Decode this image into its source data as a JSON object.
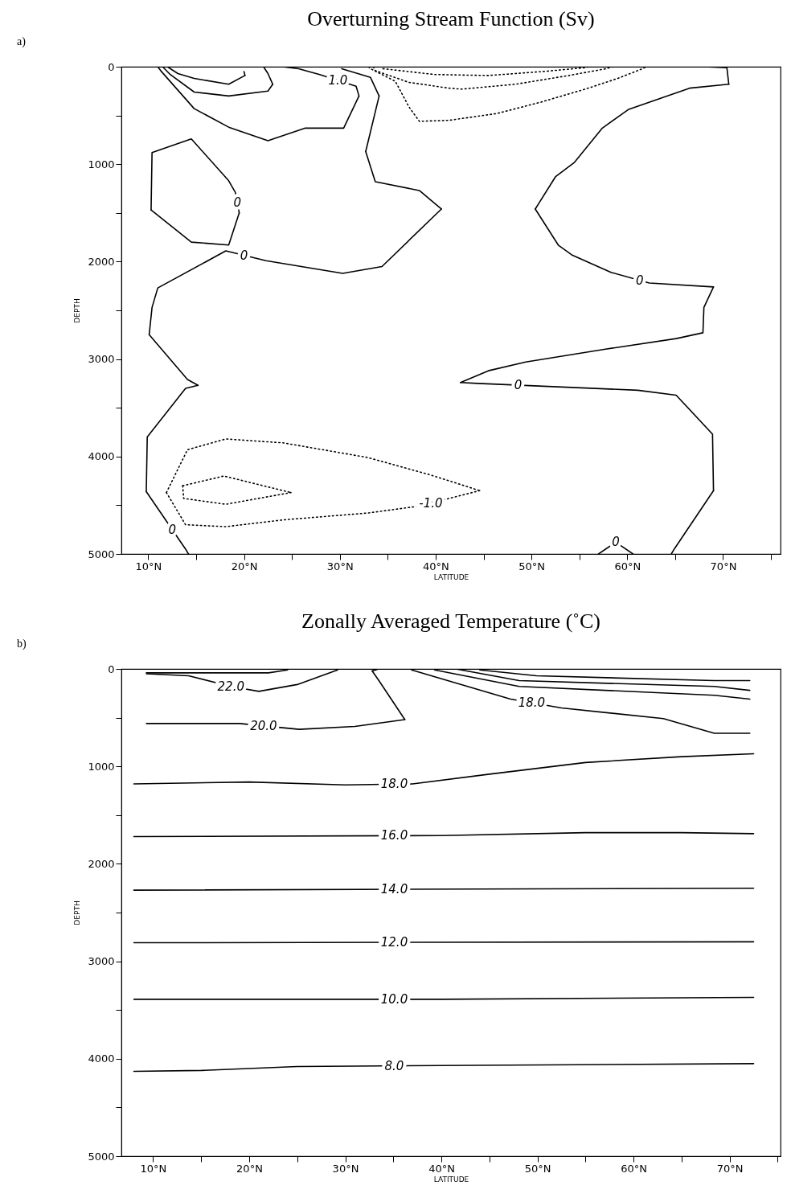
{
  "chart_data": [
    {
      "type": "line",
      "title": "Overturning Stream Function (Sv)",
      "xlabel": "LATITUDE",
      "ylabel": "DEPTH",
      "xlim": [
        7.2,
        76
      ],
      "ylim": [
        5000,
        0
      ],
      "xticks": [
        {
          "value": 10,
          "label": "10°N"
        },
        {
          "value": 15,
          "label": null
        },
        {
          "value": 20,
          "label": "20°N"
        },
        {
          "value": 25,
          "label": null
        },
        {
          "value": 30,
          "label": "30°N"
        },
        {
          "value": 35,
          "label": null
        },
        {
          "value": 40,
          "label": "40°N"
        },
        {
          "value": 45,
          "label": null
        },
        {
          "value": 50,
          "label": "50°N"
        },
        {
          "value": 55,
          "label": null
        },
        {
          "value": 60,
          "label": "60°N"
        },
        {
          "value": 65,
          "label": null
        },
        {
          "value": 70,
          "label": "70°N"
        },
        {
          "value": 75,
          "label": null
        }
      ],
      "yticks": [
        0,
        {
          "value": 500,
          "label": null
        },
        1000,
        {
          "value": 1500,
          "label": null
        },
        2000,
        {
          "value": 2500,
          "label": null
        },
        3000,
        {
          "value": 3500,
          "label": null
        },
        4000,
        {
          "value": 4500,
          "label": null
        },
        5000
      ],
      "grid": false,
      "series": [
        {
          "color": "#000000",
          "line_style": "solid",
          "x": [
            10.3,
            10.4,
            14.5,
            18.4,
            19.1,
            19.5
          ],
          "values": [
            1470,
            880,
            740,
            1170,
            1290,
            1500
          ]
        },
        {
          "color": "#000000",
          "line_style": "solid",
          "x": [
            10.3,
            14.5,
            18.4,
            19.5
          ],
          "values": [
            1470,
            1800,
            1830,
            1500
          ]
        },
        {
          "color": "#000000",
          "line_style": "solid",
          "x": [
            30.2,
            33.2,
            34.1
          ],
          "values": [
            20,
            110,
            300
          ]
        },
        {
          "color": "#000000",
          "line_style": "solid",
          "x": [
            32.7,
            34.1
          ],
          "values": [
            870,
            300
          ]
        },
        {
          "color": "#000000",
          "line_style": "solid",
          "x": [
            32.7,
            33.7,
            38.3,
            40.6
          ],
          "values": [
            870,
            1180,
            1270,
            1460
          ]
        },
        {
          "color": "#000000",
          "line_style": "solid",
          "x": [
            10.1,
            10.4,
            11.0,
            18.1,
            22.3,
            30.3,
            34.4,
            40.6
          ],
          "values": [
            2750,
            2470,
            2270,
            1890,
            1990,
            2120,
            2050,
            1460
          ]
        },
        {
          "color": "#000000",
          "line_style": "solid",
          "x": [
            10.1,
            14.1,
            15.2
          ],
          "values": [
            2750,
            3210,
            3270
          ]
        },
        {
          "color": "#000000",
          "line_style": "solid",
          "x": [
            9.8,
            9.9,
            13.9,
            15.2
          ],
          "values": [
            4360,
            3800,
            3300,
            3270
          ]
        },
        {
          "color": "#000000",
          "line_style": "solid",
          "x": [
            9.8,
            13.9,
            14.2
          ],
          "values": [
            4360,
            4950,
            5000
          ]
        },
        {
          "color": "#000000",
          "line_style": "solid",
          "x": [
            68.0,
            70.4,
            70.6
          ],
          "values": [
            0,
            10,
            180
          ]
        },
        {
          "color": "#000000",
          "line_style": "solid",
          "x": [
            50.4,
            52.5,
            54.5,
            57.4,
            60.1,
            66.5,
            70.6
          ],
          "values": [
            1460,
            1130,
            980,
            630,
            440,
            220,
            180
          ]
        },
        {
          "color": "#000000",
          "line_style": "solid",
          "x": [
            50.4,
            52.8,
            54.2,
            58.3,
            62.3,
            69.0
          ],
          "values": [
            1460,
            1830,
            1930,
            2110,
            2220,
            2260
          ]
        },
        {
          "color": "#000000",
          "line_style": "solid",
          "x": [
            42.6,
            45.5,
            49.4,
            57.6,
            65.1,
            67.9,
            68.0,
            69.0
          ],
          "values": [
            3240,
            3120,
            3030,
            2900,
            2790,
            2730,
            2470,
            2260
          ]
        },
        {
          "color": "#000000",
          "line_style": "solid",
          "x": [
            42.6,
            44.4,
            61.1,
            65.1,
            68.9,
            69.0
          ],
          "values": [
            3240,
            3250,
            3320,
            3370,
            3770,
            4350
          ]
        },
        {
          "color": "#000000",
          "line_style": "solid",
          "x": [
            64.6,
            64.9,
            69.0
          ],
          "values": [
            5000,
            4950,
            4350
          ]
        },
        {
          "color": "#000000",
          "line_style": "solid",
          "x": [
            24.0,
            25.7,
            27.9,
            31.7,
            32.0
          ],
          "values": [
            0,
            20,
            80,
            200,
            300
          ]
        },
        {
          "color": "#000000",
          "line_style": "solid",
          "x": [
            11.0,
            11.3,
            14.8,
            18.4,
            22.5,
            26.4,
            30.4,
            32.0
          ],
          "values": [
            0,
            40,
            430,
            620,
            760,
            630,
            630,
            300
          ]
        },
        {
          "color": "#000000",
          "line_style": "solid",
          "x": [
            11.5,
            12.3,
            14.8,
            18.4,
            22.5,
            23.0
          ],
          "values": [
            0,
            80,
            260,
            300,
            250,
            180
          ]
        },
        {
          "color": "#000000",
          "line_style": "solid",
          "x": [
            22.1,
            22.5,
            23.0
          ],
          "values": [
            10,
            70,
            180
          ]
        },
        {
          "color": "#000000",
          "line_style": "solid",
          "x": [
            12.0,
            13.1,
            14.8,
            18.4,
            20.1
          ],
          "values": [
            0,
            70,
            120,
            180,
            90
          ]
        },
        {
          "color": "#000000",
          "line_style": "solid",
          "x": [
            20.0,
            20.1
          ],
          "values": [
            50,
            90
          ]
        },
        {
          "color": "#000000",
          "line_style": "dotted",
          "x": [
            33.0,
            33.2,
            35.8,
            37.2,
            38.3,
            41.4,
            46.4,
            51.1,
            55.6,
            59.0,
            61.6,
            62.0
          ],
          "values": [
            0,
            20,
            150,
            410,
            560,
            550,
            480,
            360,
            230,
            120,
            20,
            0
          ]
        },
        {
          "color": "#000000",
          "line_style": "dotted",
          "x": [
            33.5,
            33.7,
            37.2,
            41.4,
            42.7,
            48.3,
            53.9,
            57.8,
            58.5
          ],
          "values": [
            0,
            40,
            160,
            220,
            230,
            180,
            90,
            20,
            0
          ]
        },
        {
          "color": "#000000",
          "line_style": "dotted",
          "x": [
            34.5,
            39.9,
            45.5,
            51.1,
            55.6,
            56.0
          ],
          "values": [
            20,
            80,
            90,
            50,
            10,
            0
          ]
        },
        {
          "color": "#000000",
          "line_style": "dotted",
          "x": [
            11.9,
            14.1,
            18.1,
            24.1,
            32.9,
            39.5,
            44.6
          ],
          "values": [
            4370,
            3930,
            3820,
            3860,
            4010,
            4190,
            4350
          ]
        },
        {
          "color": "#000000",
          "line_style": "dotted",
          "x": [
            11.9,
            13.9,
            18.1,
            24.1,
            32.9,
            38.2,
            44.6
          ],
          "values": [
            4370,
            4700,
            4720,
            4650,
            4580,
            4510,
            4350
          ]
        },
        {
          "color": "#000000",
          "line_style": "dotted",
          "x": [
            13.6,
            17.9,
            24.9
          ],
          "values": [
            4300,
            4200,
            4370
          ]
        },
        {
          "color": "#000000",
          "line_style": "dotted",
          "x": [
            13.6,
            13.7,
            18.1,
            24.9
          ],
          "values": [
            4300,
            4430,
            4490,
            4370
          ]
        },
        {
          "color": "#000000",
          "line_style": "solid",
          "x": [
            57.0,
            58.8,
            60.6
          ],
          "values": [
            5000,
            4880,
            5000
          ]
        }
      ],
      "annotations": [
        "a)",
        {
          "text": "1.0",
          "x": 29.8,
          "y": 140
        },
        {
          "text": "0",
          "x": 19.3,
          "y": 1395
        },
        {
          "text": "0",
          "x": 20.0,
          "y": 1935
        },
        {
          "text": "0",
          "x": 61.3,
          "y": 2192
        },
        {
          "text": "0",
          "x": 48.6,
          "y": 3268
        },
        {
          "text": "-1.0",
          "x": 39.5,
          "y": 4480
        },
        {
          "text": "0",
          "x": 12.5,
          "y": 4750
        },
        {
          "text": "0",
          "x": 58.8,
          "y": 4880
        }
      ]
    },
    {
      "type": "line",
      "title": "Zonally Averaged Temperature (˚C)",
      "xlabel": "LATITUDE",
      "ylabel": "DEPTH",
      "xlim": [
        6.7,
        75.3
      ],
      "ylim": [
        5000,
        0
      ],
      "xticks": [
        {
          "value": 10,
          "label": "10°N"
        },
        {
          "value": 15,
          "label": null
        },
        {
          "value": 20,
          "label": "20°N"
        },
        {
          "value": 25,
          "label": null
        },
        {
          "value": 30,
          "label": "30°N"
        },
        {
          "value": 35,
          "label": null
        },
        {
          "value": 40,
          "label": "40°N"
        },
        {
          "value": 45,
          "label": null
        },
        {
          "value": 50,
          "label": "50°N"
        },
        {
          "value": 55,
          "label": null
        },
        {
          "value": 60,
          "label": "60°N"
        },
        {
          "value": 65,
          "label": null
        },
        {
          "value": 70,
          "label": "70°N"
        },
        {
          "value": 75,
          "label": null
        }
      ],
      "yticks": [
        0,
        {
          "value": 500,
          "label": null
        },
        1000,
        {
          "value": 1500,
          "label": null
        },
        2000,
        {
          "value": 2500,
          "label": null
        },
        3000,
        {
          "value": 3500,
          "label": null
        },
        4000,
        {
          "value": 4500,
          "label": null
        },
        5000
      ],
      "grid": false,
      "series": [
        {
          "color": "#000000",
          "line_style": "solid",
          "x": [
            9.3,
            17.8,
            22.0,
            24.0
          ],
          "values": [
            40,
            40,
            40,
            10
          ]
        },
        {
          "color": "#000000",
          "line_style": "solid",
          "x": [
            9.3,
            13.7,
            18.1,
            21.0,
            25.0,
            29.2
          ],
          "values": [
            50,
            70,
            180,
            230,
            160,
            10
          ]
        },
        {
          "color": "#000000",
          "line_style": "solid",
          "x": [
            9.3,
            19.0,
            25.2,
            31.0,
            36.2
          ],
          "values": [
            560,
            560,
            620,
            590,
            520
          ]
        },
        {
          "color": "#000000",
          "line_style": "solid",
          "x": [
            32.8,
            33.5,
            36.2
          ],
          "values": [
            20,
            120,
            520
          ]
        },
        {
          "color": "#000000",
          "line_style": "solid",
          "x": [
            32.8,
            33.5
          ],
          "values": [
            20,
            0
          ]
        },
        {
          "color": "#000000",
          "line_style": "solid",
          "x": [
            36.9,
            47.2,
            52.5,
            63.1,
            68.4,
            72.1
          ],
          "values": [
            10,
            310,
            400,
            510,
            660,
            660
          ]
        },
        {
          "color": "#000000",
          "line_style": "solid",
          "x": [
            39.3,
            48.1,
            68.4,
            72.1
          ],
          "values": [
            10,
            180,
            270,
            310
          ]
        },
        {
          "color": "#000000",
          "line_style": "solid",
          "x": [
            41.5,
            48.1,
            68.4,
            72.1
          ],
          "values": [
            0,
            120,
            180,
            220
          ]
        },
        {
          "color": "#000000",
          "line_style": "solid",
          "x": [
            44.0,
            49.9,
            68.4,
            72.1
          ],
          "values": [
            10,
            70,
            120,
            120
          ]
        },
        {
          "color": "#000000",
          "line_style": "solid",
          "x": [
            8.0,
            20.0,
            30.0,
            37.0,
            45.0,
            55.0,
            65.0,
            72.5
          ],
          "values": [
            1180,
            1160,
            1190,
            1180,
            1080,
            960,
            900,
            870
          ]
        },
        {
          "color": "#000000",
          "line_style": "solid",
          "x": [
            8.0,
            40.0,
            55.0,
            65.0,
            72.5
          ],
          "values": [
            1720,
            1710,
            1680,
            1680,
            1690
          ]
        },
        {
          "color": "#000000",
          "line_style": "solid",
          "x": [
            8.0,
            72.5
          ],
          "values": [
            2270,
            2250
          ]
        },
        {
          "color": "#000000",
          "line_style": "solid",
          "x": [
            8.0,
            72.5
          ],
          "values": [
            2810,
            2800
          ]
        },
        {
          "color": "#000000",
          "line_style": "solid",
          "x": [
            8.0,
            40.0,
            72.5
          ],
          "values": [
            3390,
            3390,
            3370
          ]
        },
        {
          "color": "#000000",
          "line_style": "solid",
          "x": [
            8.0,
            15.0,
            25.0,
            40.0,
            72.5
          ],
          "values": [
            4130,
            4120,
            4080,
            4070,
            4050
          ]
        }
      ],
      "annotations": [
        "b)",
        {
          "text": "22.0",
          "x": 18.1,
          "y": 180
        },
        {
          "text": "20.0",
          "x": 21.5,
          "y": 585
        },
        {
          "text": "18.0",
          "x": 49.4,
          "y": 350
        },
        {
          "text": "18.0",
          "x": 35.1,
          "y": 1183
        },
        {
          "text": "16.0",
          "x": 35.1,
          "y": 1712
        },
        {
          "text": "14.0",
          "x": 35.1,
          "y": 2262
        },
        {
          "text": "12.0",
          "x": 35.1,
          "y": 2806
        },
        {
          "text": "10.0",
          "x": 35.1,
          "y": 3390
        },
        {
          "text": "8.0",
          "x": 35.1,
          "y": 4073
        }
      ]
    }
  ]
}
